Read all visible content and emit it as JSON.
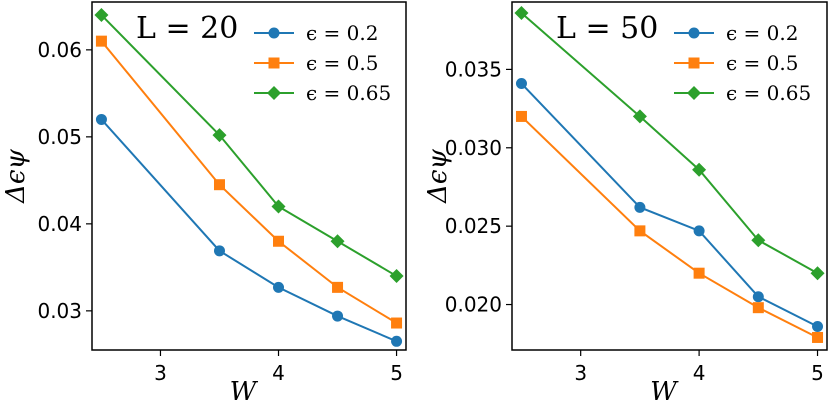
{
  "chart_data": [
    {
      "type": "line",
      "title": "L = 20",
      "xlabel": "W",
      "ylabel": "Δϵψ",
      "x": [
        2.5,
        3.5,
        4,
        4.5,
        5
      ],
      "xlim": [
        2.42,
        5.08
      ],
      "ylim": [
        0.0255,
        0.0655
      ],
      "xticks": [
        "3",
        "4",
        "5"
      ],
      "yticks": [
        "0.03",
        "0.04",
        "0.05",
        "0.06"
      ],
      "legend_position": "top-right",
      "grid": false,
      "series": [
        {
          "name": "ϵ = 0.2",
          "color": "#1f77b4",
          "marker": "circle",
          "values": [
            0.052,
            0.0369,
            0.0327,
            0.0294,
            0.0265
          ]
        },
        {
          "name": "ϵ = 0.5",
          "color": "#ff7f0e",
          "marker": "square",
          "values": [
            0.061,
            0.0445,
            0.038,
            0.0327,
            0.0286
          ]
        },
        {
          "name": "ϵ = 0.65",
          "color": "#2ca02c",
          "marker": "diamond",
          "values": [
            0.064,
            0.0502,
            0.042,
            0.038,
            0.034
          ]
        }
      ]
    },
    {
      "type": "line",
      "title": "L = 50",
      "xlabel": "W",
      "ylabel": "Δϵψ",
      "x": [
        2.5,
        3.5,
        4,
        4.5,
        5
      ],
      "xlim": [
        2.42,
        5.08
      ],
      "ylim": [
        0.0171,
        0.0393
      ],
      "xticks": [
        "3",
        "4",
        "5"
      ],
      "yticks": [
        "0.020",
        "0.025",
        "0.030",
        "0.035"
      ],
      "legend_position": "top-right",
      "grid": false,
      "series": [
        {
          "name": "ϵ = 0.2",
          "color": "#1f77b4",
          "marker": "circle",
          "values": [
            0.0341,
            0.0262,
            0.0247,
            0.0205,
            0.0186
          ]
        },
        {
          "name": "ϵ = 0.5",
          "color": "#ff7f0e",
          "marker": "square",
          "values": [
            0.032,
            0.0247,
            0.022,
            0.0198,
            0.0179
          ]
        },
        {
          "name": "ϵ = 0.65",
          "color": "#2ca02c",
          "marker": "diamond",
          "values": [
            0.0386,
            0.032,
            0.0286,
            0.0241,
            0.022
          ]
        }
      ]
    }
  ]
}
